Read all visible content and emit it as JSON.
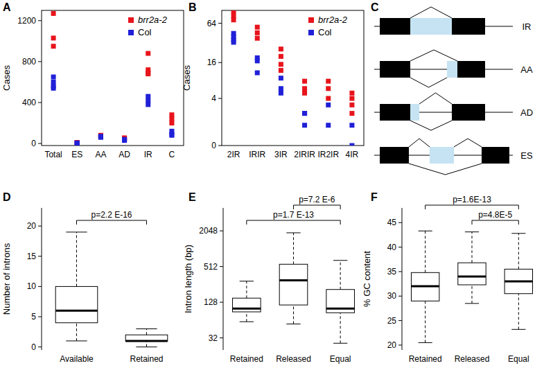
{
  "chart_data": [
    {
      "title": "A",
      "type": "strip",
      "y_label": "Cases",
      "categories": [
        "Total",
        "ES",
        "AA",
        "AD",
        "IR",
        "C"
      ],
      "series": [
        {
          "name": "brr2a-2",
          "color": "#e8141c",
          "marker": "square",
          "values": [
            [
              1270,
              1030,
              950
            ],
            [
              8,
              10,
              5
            ],
            [
              70,
              75,
              80
            ],
            [
              55,
              50,
              45
            ],
            [
              880,
              720,
              690,
              680
            ],
            [
              280,
              240,
              200
            ]
          ]
        },
        {
          "name": "Col",
          "color": "#2020d8",
          "marker": "square",
          "values": [
            [
              650,
              600,
              560,
              540
            ],
            [
              5,
              3,
              4
            ],
            [
              70,
              65,
              60
            ],
            [
              40,
              35,
              30
            ],
            [
              460,
              420,
              380
            ],
            [
              120,
              90,
              80
            ]
          ]
        }
      ],
      "ylim": [
        -20,
        1300
      ],
      "yticks": [
        0,
        400,
        800,
        1200
      ],
      "legend": "top-right"
    },
    {
      "title": "B",
      "type": "strip",
      "y_label": "Cases",
      "log": "y",
      "categories": [
        "2IR",
        "IRIR",
        "3IR",
        "2IRIR",
        "IR2IR",
        "4IR"
      ],
      "series": [
        {
          "name": "brr2a-2",
          "color": "#e8141c",
          "marker": "square",
          "values": [
            [
              95,
              82,
              72
            ],
            [
              56,
              46,
              38
            ],
            [
              26,
              20,
              15,
              12
            ],
            [
              8,
              6,
              5
            ],
            [
              8,
              6,
              4
            ],
            [
              5,
              4,
              3,
              2
            ]
          ]
        },
        {
          "name": "Col",
          "color": "#2020d8",
          "marker": "square",
          "values": [
            [
              45,
              40,
              36,
              33
            ],
            [
              19,
              17,
              11
            ],
            [
              9,
              6,
              5
            ],
            [
              2,
              2,
              1
            ],
            [
              3,
              1
            ],
            [
              1,
              0
            ]
          ]
        }
      ],
      "ylim": [
        0,
        100
      ],
      "yticks": [
        0,
        4,
        16,
        64
      ],
      "legend": "top-right"
    },
    {
      "title": "D",
      "type": "box",
      "y_label": "Number of introns",
      "categories": [
        "Available",
        "Retained"
      ],
      "min": [
        1,
        0
      ],
      "q1": [
        4,
        1
      ],
      "median": [
        6,
        1
      ],
      "q3": [
        10,
        2
      ],
      "max": [
        19,
        3
      ],
      "ylim": [
        -0.5,
        23
      ],
      "yticks": [
        0,
        5,
        10,
        15,
        20
      ],
      "annotations": [
        {
          "text": "p=2.2 E-16",
          "between": [
            "Available",
            "Retained"
          ]
        }
      ]
    },
    {
      "title": "E",
      "type": "box",
      "y_label": "Intron length (bp)",
      "log": "y",
      "categories": [
        "Retained",
        "Released",
        "Equal"
      ],
      "min": [
        60,
        55,
        26
      ],
      "q1": [
        88,
        115,
        85
      ],
      "median": [
        100,
        300,
        100
      ],
      "q3": [
        150,
        560,
        210
      ],
      "max": [
        290,
        1900,
        650
      ],
      "ylim": [
        20,
        5000
      ],
      "yticks": [
        32,
        128,
        512,
        2048
      ],
      "annotations": [
        {
          "text": "p=1.7 E-13",
          "between": [
            "Retained",
            "Equal"
          ]
        },
        {
          "text": "p=7.2 E-6",
          "between": [
            "Released",
            "Equal"
          ]
        }
      ]
    },
    {
      "title": "F",
      "type": "box",
      "y_label": "% GC content",
      "categories": [
        "Retained",
        "Released",
        "Equal"
      ],
      "min": [
        20.5,
        28.5,
        23.2
      ],
      "q1": [
        29,
        32.3,
        30.5
      ],
      "median": [
        32,
        34,
        33
      ],
      "q3": [
        34.8,
        36.8,
        35.5
      ],
      "max": [
        43.3,
        43.1,
        42.8
      ],
      "ylim": [
        19,
        48
      ],
      "yticks": [
        20,
        25,
        30,
        35,
        40,
        45
      ],
      "annotations": [
        {
          "text": "p=4.8E-5",
          "between": [
            "Released",
            "Equal"
          ]
        },
        {
          "text": "p=1.6E-13",
          "between": [
            "Retained",
            "Equal"
          ]
        }
      ]
    }
  ],
  "diagram": {
    "title": "C",
    "events": [
      "IR",
      "AA",
      "AD",
      "ES"
    ]
  }
}
